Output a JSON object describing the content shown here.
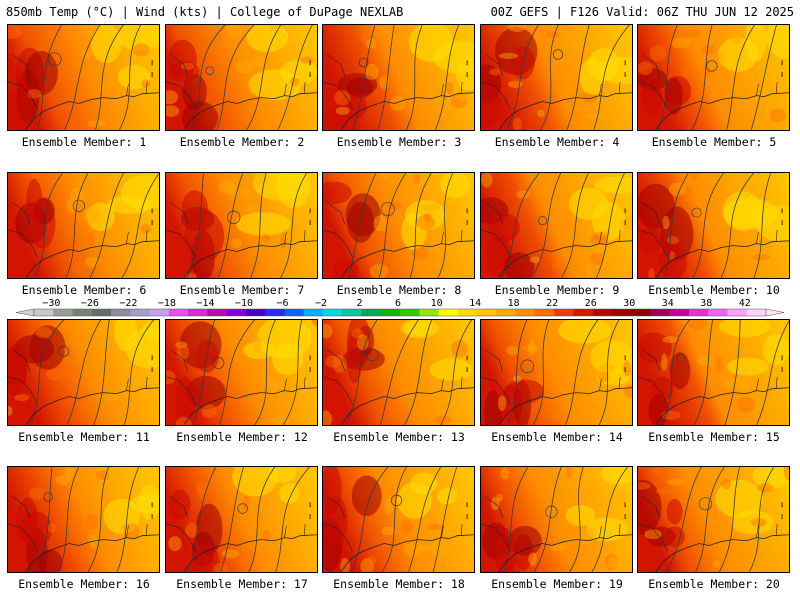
{
  "header": {
    "left": "850mb Temp (°C) | Wind (kts) | College of DuPage NEXLAB",
    "right": "00Z GEFS | F126 Valid: 06Z THU JUN 12 2025"
  },
  "members": [
    "Ensemble Member: 1",
    "Ensemble Member: 2",
    "Ensemble Member: 3",
    "Ensemble Member: 4",
    "Ensemble Member: 5",
    "Ensemble Member: 6",
    "Ensemble Member: 7",
    "Ensemble Member: 8",
    "Ensemble Member: 9",
    "Ensemble Member: 10",
    "Ensemble Member: 11",
    "Ensemble Member: 12",
    "Ensemble Member: 13",
    "Ensemble Member: 14",
    "Ensemble Member: 15",
    "Ensemble Member: 16",
    "Ensemble Member: 17",
    "Ensemble Member: 18",
    "Ensemble Member: 19",
    "Ensemble Member: 20"
  ],
  "colorbar": {
    "ticks": [
      "-30",
      "-26",
      "-22",
      "-18",
      "-14",
      "-10",
      "-6",
      "-2",
      "2",
      "6",
      "10",
      "14",
      "18",
      "22",
      "26",
      "30",
      "34",
      "38",
      "42"
    ],
    "colors": [
      "#c8c8c8",
      "#96a096",
      "#788278",
      "#646e64",
      "#8c8ca0",
      "#a0a0c8",
      "#c8a0f0",
      "#e650e6",
      "#dc28dc",
      "#b40ab4",
      "#8200dc",
      "#4b00c8",
      "#2828ff",
      "#0a64ff",
      "#00b4ff",
      "#00dcdc",
      "#00c8a0",
      "#00aa5a",
      "#14b400",
      "#3cc800",
      "#96e600",
      "#ffff00",
      "#ffdc00",
      "#ffc800",
      "#ffaa00",
      "#ff8c00",
      "#ff6e00",
      "#f03c00",
      "#dc1400",
      "#be0000",
      "#a00000",
      "#8c0000",
      "#a0005a",
      "#c80096",
      "#e632c8",
      "#f064f0",
      "#ffa0ff",
      "#ffd2ff"
    ]
  }
}
